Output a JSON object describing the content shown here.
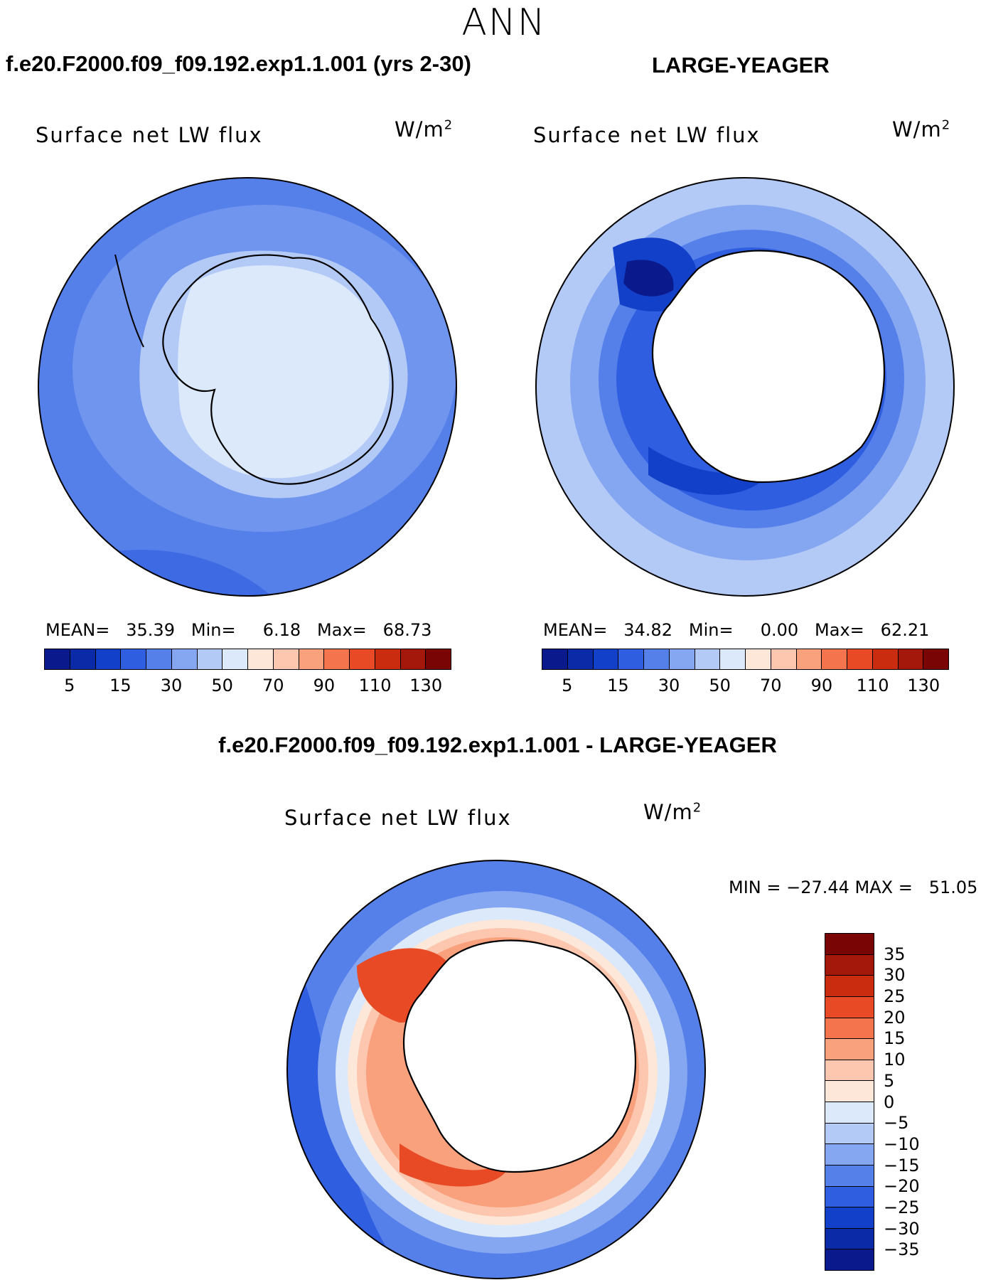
{
  "season": "ANN",
  "top_left": {
    "case_title": "f.e20.F2000.f09_f09.192.exp1.1.001 (yrs 2-30)",
    "variable": "Surface net LW flux",
    "units": "W/m",
    "units_exp": "2",
    "mean_label": "MEAN=",
    "mean_value": "35.39",
    "min_label": "Min=",
    "min_value": "6.18",
    "max_label": "Max=",
    "max_value": "68.73"
  },
  "top_right": {
    "case_title": "LARGE-YEAGER",
    "variable": "Surface net LW flux",
    "units": "W/m",
    "units_exp": "2",
    "mean_label": "MEAN=",
    "mean_value": "34.82",
    "min_label": "Min=",
    "min_value": "0.00",
    "max_label": "Max=",
    "max_value": "62.21"
  },
  "abs_colorbar": {
    "colors": [
      "#0a1a8c",
      "#0b2aa8",
      "#1340c8",
      "#2f5ee0",
      "#5580ea",
      "#85a6f0",
      "#b3c9f6",
      "#dce9fb",
      "#fde7d8",
      "#fcc7ae",
      "#f9a07d",
      "#f4744d",
      "#e84a25",
      "#c92c0f",
      "#a3180a",
      "#7a0505"
    ],
    "ticks": [
      "5",
      "15",
      "30",
      "50",
      "70",
      "90",
      "110",
      "130"
    ]
  },
  "diff": {
    "title": "f.e20.F2000.f09_f09.192.exp1.1.001 - LARGE-YEAGER",
    "variable": "Surface net LW flux",
    "units": "W/m",
    "units_exp": "2",
    "minmax_text": "MIN = −27.44 MAX =   51.05"
  },
  "diff_colorbar": {
    "colors": [
      "#7a0505",
      "#a3180a",
      "#c92c0f",
      "#e84a25",
      "#f4744d",
      "#f9a07d",
      "#fcc7ae",
      "#fde7d8",
      "#dce9fb",
      "#b3c9f6",
      "#85a6f0",
      "#5580ea",
      "#2f5ee0",
      "#1340c8",
      "#0b2aa8",
      "#0a1a8c"
    ],
    "ticks": [
      "35",
      "30",
      "25",
      "20",
      "15",
      "10",
      "5",
      "0",
      "−5",
      "−10",
      "−15",
      "−20",
      "−25",
      "−30",
      "−35"
    ]
  },
  "colors": {
    "land": "#ffffff",
    "coast": "#000000"
  }
}
